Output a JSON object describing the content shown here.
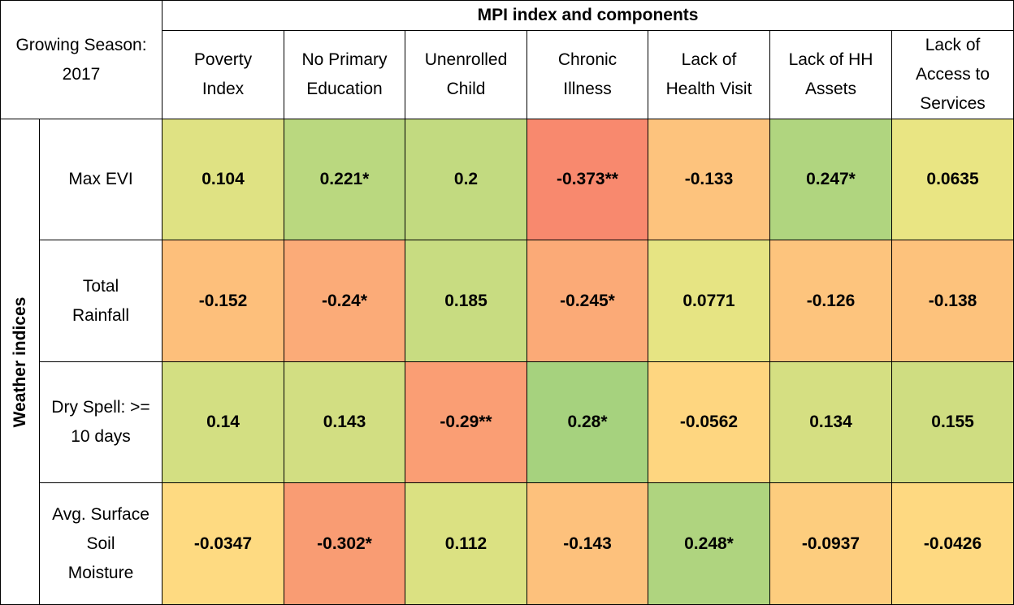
{
  "chart_data": {
    "type": "heatmap",
    "corner_label": "Growing Season:\n2017",
    "column_group_label": "MPI index and components",
    "row_group_label": "Weather indices",
    "columns": [
      "Poverty\nIndex",
      "No Primary\nEducation",
      "Unenrolled\nChild",
      "Chronic\nIllness",
      "Lack of\nHealth Visit",
      "Lack of HH\nAssets",
      "Lack of\nAccess to\nServices"
    ],
    "rows": [
      {
        "label": "Max EVI",
        "cells": [
          {
            "value": 0.104,
            "text": "0.104",
            "color": "#dfe283"
          },
          {
            "value": 0.221,
            "text": "0.221*",
            "color": "#bad87f"
          },
          {
            "value": 0.2,
            "text": "0.2",
            "color": "#c2da80"
          },
          {
            "value": -0.373,
            "text": "-0.373**",
            "color": "#f8896e"
          },
          {
            "value": -0.133,
            "text": "-0.133",
            "color": "#fdc37d"
          },
          {
            "value": 0.247,
            "text": "0.247*",
            "color": "#b0d57f"
          },
          {
            "value": 0.0635,
            "text": "0.0635",
            "color": "#e9e583"
          }
        ]
      },
      {
        "label": "Total\nRainfall",
        "cells": [
          {
            "value": -0.152,
            "text": "-0.152",
            "color": "#fdbf7b"
          },
          {
            "value": -0.24,
            "text": "-0.24*",
            "color": "#fbab78"
          },
          {
            "value": 0.185,
            "text": "0.185",
            "color": "#c8dc81"
          },
          {
            "value": -0.245,
            "text": "-0.245*",
            "color": "#fbaa77"
          },
          {
            "value": 0.0771,
            "text": "0.0771",
            "color": "#e6e483"
          },
          {
            "value": -0.126,
            "text": "-0.126",
            "color": "#fdc47d"
          },
          {
            "value": -0.138,
            "text": "-0.138",
            "color": "#fdc27c"
          }
        ]
      },
      {
        "label": "Dry Spell: >=\n10 days",
        "cells": [
          {
            "value": 0.14,
            "text": "0.14",
            "color": "#d3df82"
          },
          {
            "value": 0.143,
            "text": "0.143",
            "color": "#d2de82"
          },
          {
            "value": -0.29,
            "text": "-0.29**",
            "color": "#fa9e74"
          },
          {
            "value": 0.28,
            "text": "0.28*",
            "color": "#a6d27e"
          },
          {
            "value": -0.0562,
            "text": "-0.0562",
            "color": "#fed680"
          },
          {
            "value": 0.134,
            "text": "0.134",
            "color": "#d5df82"
          },
          {
            "value": 0.155,
            "text": "0.155",
            "color": "#cfdd81"
          }
        ]
      },
      {
        "label": "Avg. Surface\nSoil\nMoisture",
        "cells": [
          {
            "value": -0.0347,
            "text": "-0.0347",
            "color": "#feda81"
          },
          {
            "value": -0.302,
            "text": "-0.302*",
            "color": "#f99c73"
          },
          {
            "value": 0.112,
            "text": "0.112",
            "color": "#dbe182"
          },
          {
            "value": -0.143,
            "text": "-0.143",
            "color": "#fdc17c"
          },
          {
            "value": 0.248,
            "text": "0.248*",
            "color": "#afd47f"
          },
          {
            "value": -0.0937,
            "text": "-0.0937",
            "color": "#fdcd7e"
          },
          {
            "value": -0.0426,
            "text": "-0.0426",
            "color": "#fed981"
          }
        ]
      }
    ]
  }
}
